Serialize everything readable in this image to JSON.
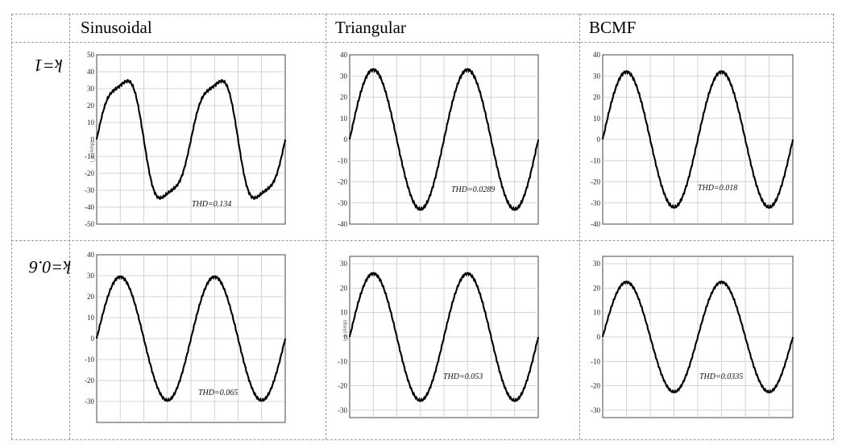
{
  "table": {
    "columns": [
      "Sinusoidal",
      "Triangular",
      "BCMF"
    ],
    "rows": [
      "k=1",
      "k=0.6"
    ]
  },
  "chart_data": [
    {
      "type": "line",
      "row": "k=1",
      "column": "Sinusoidal",
      "ylim": [
        -50,
        50
      ],
      "yticks": [
        50,
        40,
        30,
        20,
        10,
        0,
        -10,
        -20,
        -30,
        -40,
        -50
      ],
      "ylabel": "i_a (Amp)",
      "annotation": "THD=0.134",
      "shape": "sine-distorted",
      "series": [
        {
          "x": [
            0,
            0.1,
            0.2,
            0.25,
            0.3,
            0.4,
            0.5,
            0.6,
            0.7,
            0.75,
            0.8,
            0.9,
            1,
            1.1,
            1.2,
            1.25,
            1.3,
            1.4,
            1.5,
            1.6,
            1.7,
            1.75,
            1.8,
            1.9,
            2
          ],
          "values": [
            0,
            26,
            36,
            37,
            35,
            25,
            0,
            -25,
            -35,
            -37,
            -36,
            -25,
            0,
            26,
            36,
            37,
            35,
            25,
            0,
            -25,
            -35,
            -37,
            -36,
            -25,
            0
          ]
        }
      ]
    },
    {
      "type": "line",
      "row": "k=1",
      "column": "Triangular",
      "ylim": [
        -40,
        40
      ],
      "yticks": [
        40,
        30,
        20,
        10,
        0,
        -10,
        -20,
        -30,
        -40
      ],
      "annotation": "THD=0.0289",
      "shape": "sine",
      "series": [
        {
          "x": [
            0,
            0.25,
            0.5,
            0.75,
            1,
            1.25,
            1.5,
            1.75,
            2
          ],
          "values": [
            0,
            33,
            0,
            -33,
            0,
            33,
            0,
            -33,
            0
          ]
        }
      ]
    },
    {
      "type": "line",
      "row": "k=1",
      "column": "BCMF",
      "ylim": [
        -40,
        40
      ],
      "yticks": [
        40,
        30,
        20,
        10,
        0,
        -10,
        -20,
        -30,
        -40
      ],
      "annotation": "THD=0.018",
      "shape": "sine",
      "series": [
        {
          "x": [
            0,
            0.25,
            0.5,
            0.75,
            1,
            1.25,
            1.5,
            1.75,
            2
          ],
          "values": [
            0,
            32,
            0,
            -32,
            0,
            32,
            0,
            -32,
            0
          ]
        }
      ]
    },
    {
      "type": "line",
      "row": "k=0.6",
      "column": "Sinusoidal",
      "ylim": [
        -40,
        40
      ],
      "yticks": [
        40,
        30,
        20,
        10,
        0,
        -10,
        -20,
        -30
      ],
      "annotation": "THD=0.065",
      "shape": "sine",
      "series": [
        {
          "x": [
            0,
            0.25,
            0.5,
            0.75,
            1,
            1.25,
            1.5,
            1.75,
            2
          ],
          "values": [
            0,
            29.5,
            0,
            -29.5,
            0,
            29.5,
            0,
            -29.5,
            0
          ]
        }
      ]
    },
    {
      "type": "line",
      "row": "k=0.6",
      "column": "Triangular",
      "ylim": [
        -33,
        33
      ],
      "yticks": [
        30,
        20,
        10,
        0,
        -10,
        -20,
        -30
      ],
      "ylabel": "i_a (Amp)",
      "annotation": "THD=0.053",
      "shape": "sine",
      "series": [
        {
          "x": [
            0,
            0.25,
            0.5,
            0.75,
            1,
            1.25,
            1.5,
            1.75,
            2
          ],
          "values": [
            0,
            26,
            0,
            -26,
            0,
            26,
            0,
            -26,
            0
          ]
        }
      ]
    },
    {
      "type": "line",
      "row": "k=0.6",
      "column": "BCMF",
      "ylim": [
        -33,
        33
      ],
      "yticks": [
        30,
        20,
        10,
        0,
        -10,
        -20,
        -30
      ],
      "annotation": "THD=0.0335",
      "shape": "sine",
      "series": [
        {
          "x": [
            0,
            0.25,
            0.5,
            0.75,
            1,
            1.25,
            1.5,
            1.75,
            2
          ],
          "values": [
            0,
            22.5,
            0,
            -22.5,
            0,
            22.5,
            0,
            -22.5,
            0
          ]
        }
      ]
    }
  ]
}
